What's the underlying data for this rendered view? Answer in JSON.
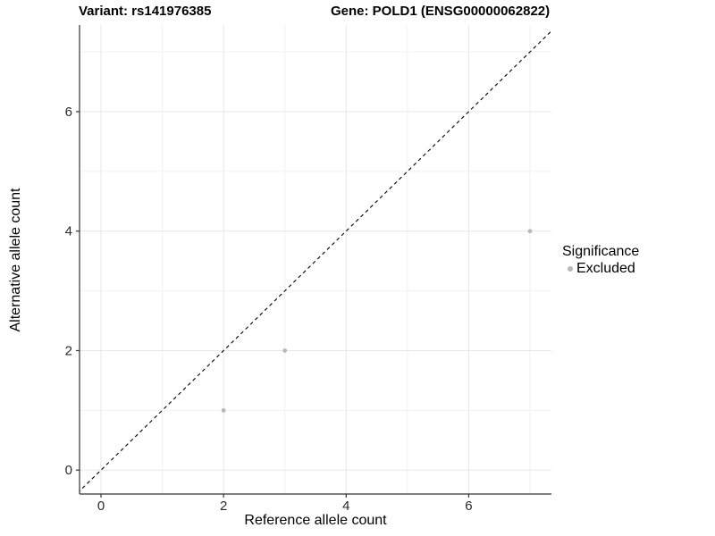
{
  "header": {
    "variant_title": "Variant: rs141976385",
    "gene_title": "Gene: POLD1 (ENSG00000062822)"
  },
  "chart_data": {
    "type": "scatter",
    "title": "Variant: rs141976385 / Gene: POLD1 (ENSG00000062822)",
    "xlabel": "Reference allele count",
    "ylabel": "Alternative allele count",
    "xlim": [
      -0.35,
      7.35
    ],
    "ylim": [
      -0.4,
      7.45
    ],
    "x_ticks": [
      0,
      2,
      4,
      6
    ],
    "y_ticks": [
      0,
      2,
      4,
      6
    ],
    "x_minor": [
      1,
      3,
      5,
      7
    ],
    "y_minor": [
      1,
      3,
      5,
      7
    ],
    "grid": true,
    "identity_line": {
      "type": "abline",
      "slope": 1,
      "intercept": 0,
      "style": "dashed",
      "color": "#000000"
    },
    "series": [
      {
        "name": "Excluded",
        "color": "#b8b8b8",
        "points": [
          {
            "x": 2,
            "y": 1
          },
          {
            "x": 3,
            "y": 2
          },
          {
            "x": 7,
            "y": 4
          }
        ]
      }
    ],
    "legend": {
      "title": "Significance",
      "position": "right",
      "items": [
        {
          "label": "Excluded",
          "color": "#b8b8b8"
        }
      ]
    }
  },
  "colors": {
    "background": "#ffffff",
    "axis_line": "#333333",
    "major_grid": "#e7e7e7",
    "minor_grid": "#f2f2f2",
    "tick_label": "#2b2b2b",
    "point": "#b8b8b8",
    "identity_line": "#000000"
  }
}
